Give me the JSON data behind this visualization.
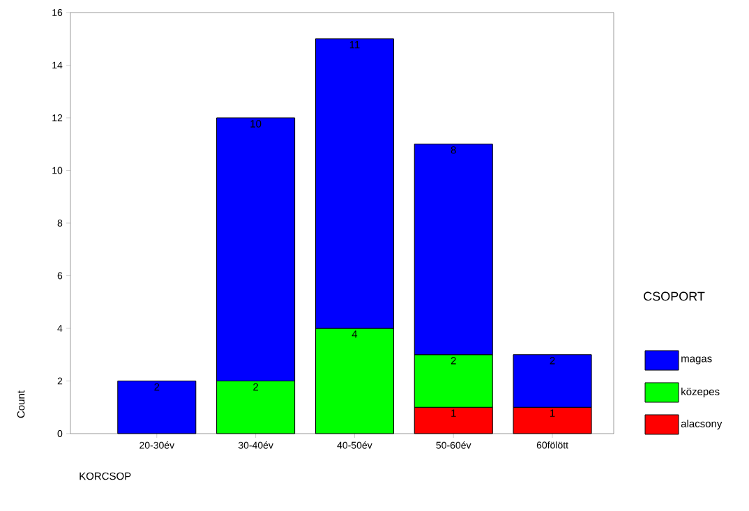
{
  "chart_data": {
    "type": "bar",
    "stacked": true,
    "xlabel": "KORCSOP",
    "ylabel": "Count",
    "legend_title": "CSOPORT",
    "categories": [
      "20-30év",
      "30-40év",
      "40-50év",
      "50-60év",
      "60fölött"
    ],
    "series": [
      {
        "name": "alacsony",
        "color": "#ff0000",
        "values": [
          null,
          null,
          null,
          1,
          1
        ]
      },
      {
        "name": "közepes",
        "color": "#00ff00",
        "values": [
          null,
          2,
          4,
          2,
          null
        ]
      },
      {
        "name": "magas",
        "color": "#0000ff",
        "values": [
          2,
          10,
          11,
          8,
          2
        ]
      }
    ],
    "ylim": [
      0,
      16
    ],
    "yticks": [
      0,
      2,
      4,
      6,
      8,
      10,
      12,
      14,
      16
    ],
    "grid": false,
    "legend": "right",
    "data_labels": true
  }
}
